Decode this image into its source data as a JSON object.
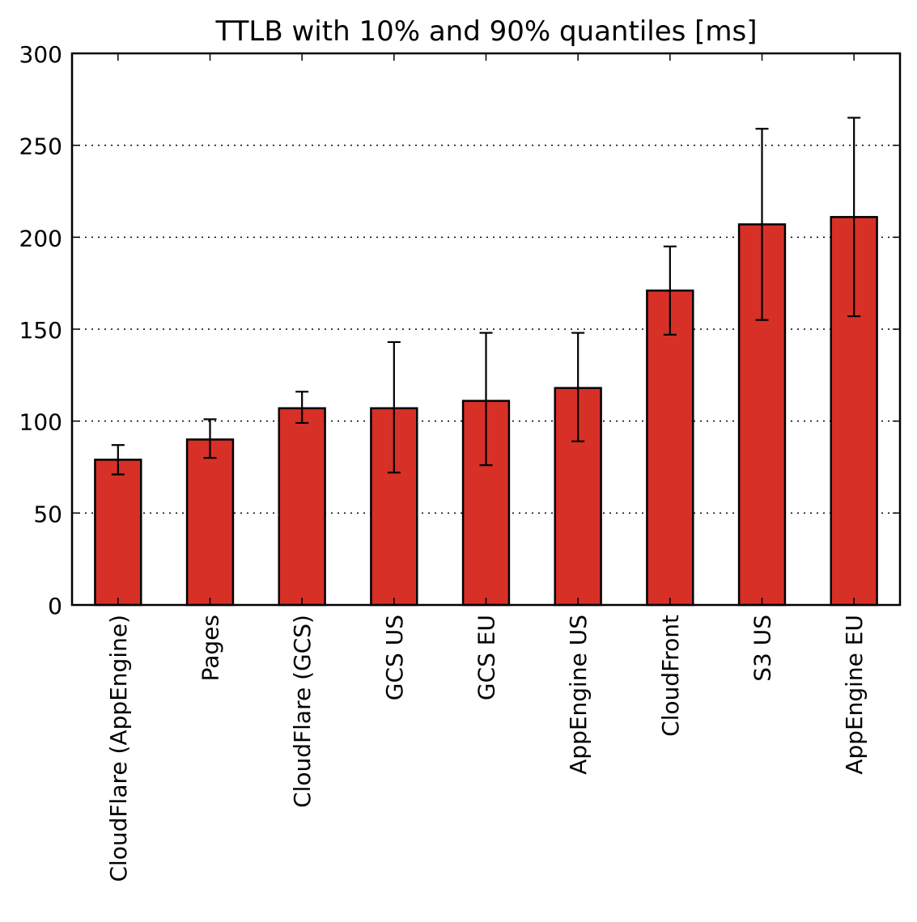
{
  "chart_data": {
    "type": "bar",
    "title": "TTLB with 10% and 90% quantiles [ms]",
    "xlabel": "",
    "ylabel": "",
    "ylim": [
      0,
      300
    ],
    "yticks": [
      "0",
      "50",
      "100",
      "150",
      "200",
      "250",
      "300"
    ],
    "grid": "horizontal dotted",
    "categories": [
      "CloudFlare (AppEngine)",
      "Pages",
      "CloudFlare (GCS)",
      "GCS US",
      "GCS EU",
      "AppEngine US",
      "CloudFront",
      "S3 US",
      "AppEngine EU"
    ],
    "values": [
      79,
      90,
      107,
      107,
      111,
      118,
      171,
      207,
      211
    ],
    "error_low": [
      71,
      80,
      99,
      72,
      76,
      89,
      147,
      155,
      157
    ],
    "error_high": [
      87,
      101,
      116,
      143,
      148,
      148,
      195,
      259,
      265
    ],
    "bar_color": "#d73027",
    "edge_color": "#000000"
  }
}
